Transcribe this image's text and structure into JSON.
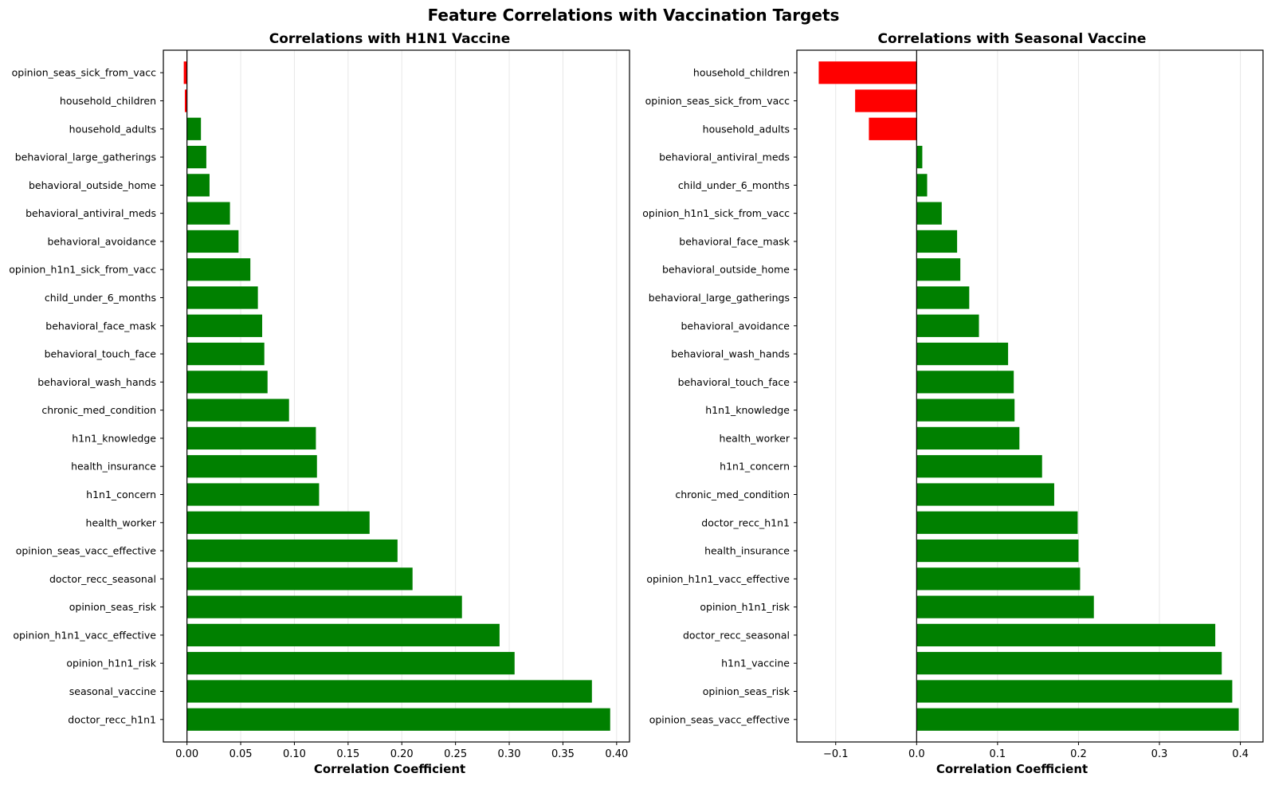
{
  "chart_data": {
    "title": "Feature Correlations with Vaccination Targets",
    "colors": {
      "positive": "#008000",
      "negative": "#ff0000"
    },
    "panels": [
      {
        "type": "bar",
        "orientation": "horizontal",
        "title": "Correlations with H1N1 Vaccine",
        "xlabel": "Correlation Coefficient",
        "ylabel": "",
        "xlim": [
          -0.022,
          0.412
        ],
        "xticks": [
          0.0,
          0.05,
          0.1,
          0.15,
          0.2,
          0.25,
          0.3,
          0.35,
          0.4
        ],
        "xtick_labels": [
          "0.00",
          "0.05",
          "0.10",
          "0.15",
          "0.20",
          "0.25",
          "0.30",
          "0.35",
          "0.40"
        ],
        "grid": "x",
        "categories": [
          "opinion_seas_sick_from_vacc",
          "household_children",
          "household_adults",
          "behavioral_large_gatherings",
          "behavioral_outside_home",
          "behavioral_antiviral_meds",
          "behavioral_avoidance",
          "opinion_h1n1_sick_from_vacc",
          "child_under_6_months",
          "behavioral_face_mask",
          "behavioral_touch_face",
          "behavioral_wash_hands",
          "chronic_med_condition",
          "h1n1_knowledge",
          "health_insurance",
          "h1n1_concern",
          "health_worker",
          "opinion_seas_vacc_effective",
          "doctor_recc_seasonal",
          "opinion_seas_risk",
          "opinion_h1n1_vacc_effective",
          "opinion_h1n1_risk",
          "seasonal_vaccine",
          "doctor_recc_h1n1"
        ],
        "values": [
          -0.003,
          -0.002,
          0.013,
          0.018,
          0.021,
          0.04,
          0.048,
          0.059,
          0.066,
          0.07,
          0.072,
          0.075,
          0.095,
          0.12,
          0.121,
          0.123,
          0.17,
          0.196,
          0.21,
          0.256,
          0.291,
          0.305,
          0.377,
          0.394
        ]
      },
      {
        "type": "bar",
        "orientation": "horizontal",
        "title": "Correlations with Seasonal Vaccine",
        "xlabel": "Correlation Coefficient",
        "ylabel": "",
        "xlim": [
          -0.148,
          0.428
        ],
        "xticks": [
          -0.1,
          0.0,
          0.1,
          0.2,
          0.3,
          0.4
        ],
        "xtick_labels": [
          "−0.1",
          "0.0",
          "0.1",
          "0.2",
          "0.3",
          "0.4"
        ],
        "grid": "x",
        "categories": [
          "household_children",
          "opinion_seas_sick_from_vacc",
          "household_adults",
          "behavioral_antiviral_meds",
          "child_under_6_months",
          "opinion_h1n1_sick_from_vacc",
          "behavioral_face_mask",
          "behavioral_outside_home",
          "behavioral_large_gatherings",
          "behavioral_avoidance",
          "behavioral_wash_hands",
          "behavioral_touch_face",
          "h1n1_knowledge",
          "health_worker",
          "h1n1_concern",
          "chronic_med_condition",
          "doctor_recc_h1n1",
          "health_insurance",
          "opinion_h1n1_vacc_effective",
          "opinion_h1n1_risk",
          "doctor_recc_seasonal",
          "h1n1_vaccine",
          "opinion_seas_risk",
          "opinion_seas_vacc_effective"
        ],
        "values": [
          -0.121,
          -0.076,
          -0.059,
          0.007,
          0.013,
          0.031,
          0.05,
          0.054,
          0.065,
          0.077,
          0.113,
          0.12,
          0.121,
          0.127,
          0.155,
          0.17,
          0.199,
          0.2,
          0.202,
          0.219,
          0.369,
          0.377,
          0.39,
          0.398
        ]
      }
    ]
  }
}
